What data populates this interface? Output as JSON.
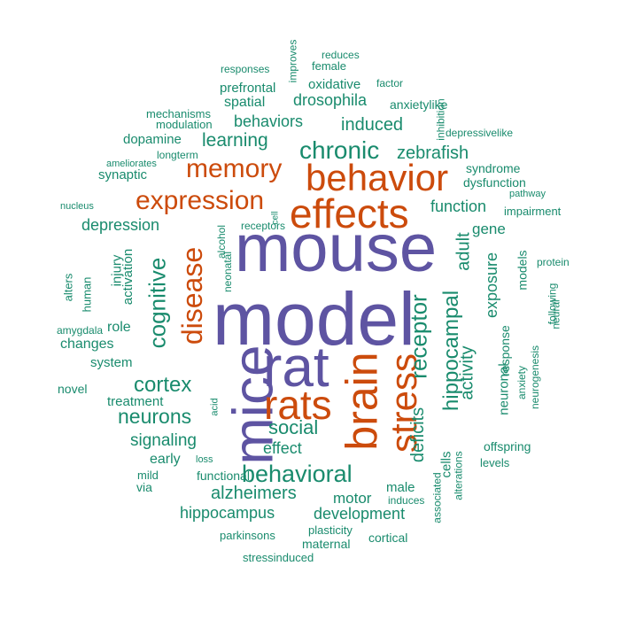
{
  "colors": {
    "top": "#5e54a2",
    "high": "#cc4b0c",
    "mid": "#198b6d"
  },
  "words": [
    "mouse",
    "model",
    "rat",
    "mice",
    "effects",
    "behavior",
    "rats",
    "brain",
    "stress",
    "memory",
    "disease",
    "expression",
    "chronic",
    "behavioral",
    "cognitive",
    "receptor",
    "hippocampal",
    "cortex",
    "neurons",
    "social",
    "zebrafish",
    "learning",
    "induced",
    "deficits",
    "adult",
    "activity",
    "alzheimers",
    "hippocampus",
    "development",
    "signaling",
    "drosophila",
    "behaviors",
    "function",
    "exposure",
    "depression",
    "gene",
    "motor",
    "effect",
    "neuronal",
    "activation",
    "injury",
    "changes",
    "role",
    "system",
    "treatment",
    "early",
    "male",
    "spatial",
    "oxidative",
    "prefrontal",
    "dopamine",
    "synaptic",
    "mild",
    "via",
    "novel",
    "cells",
    "offspring",
    "response",
    "functional",
    "models",
    "syndrome",
    "dysfunction",
    "impairment",
    "pathway",
    "protein",
    "following",
    "neural",
    "neurogenesis",
    "anxiety",
    "levels",
    "anxietylike",
    "inhibition",
    "depressivelike",
    "factor",
    "female",
    "reduces",
    "responses",
    "improves",
    "mechanisms",
    "modulation",
    "longterm",
    "ameliorates",
    "nucleus",
    "alters",
    "human",
    "amygdala",
    "receptors",
    "neonatal",
    "alcohol",
    "cell",
    "acid",
    "loss",
    "induces",
    "associated",
    "alterations",
    "parkinsons",
    "plasticity",
    "maternal",
    "cortical",
    "stressinduced"
  ]
}
